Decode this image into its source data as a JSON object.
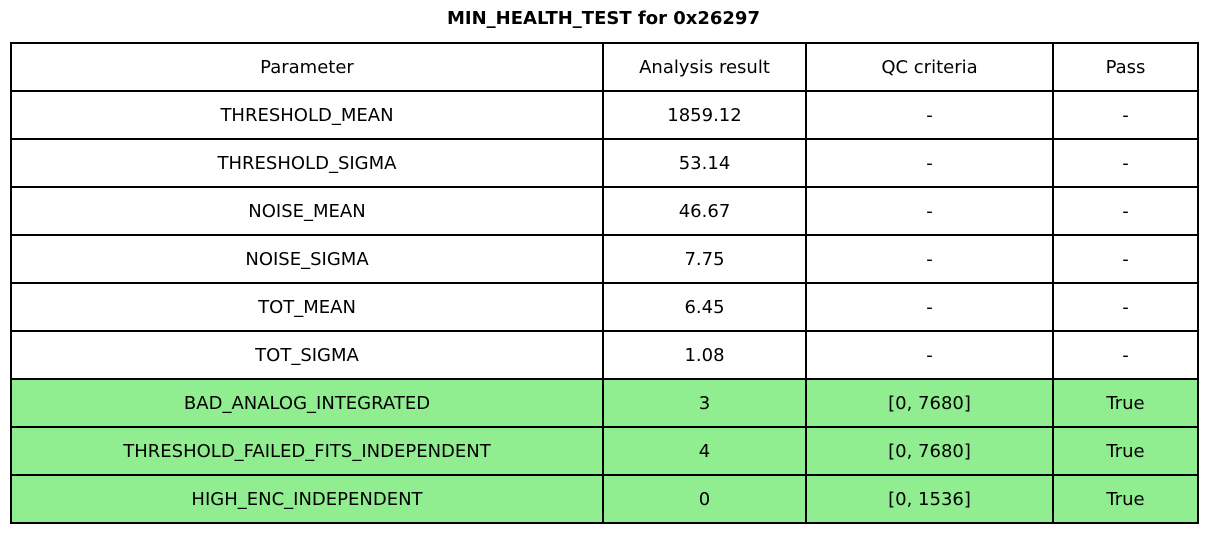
{
  "chart_data": {
    "type": "table",
    "title": "MIN_HEALTH_TEST for 0x26297",
    "columns": [
      "Parameter",
      "Analysis result",
      "QC criteria",
      "Pass"
    ],
    "rows": [
      {
        "cells": [
          "THRESHOLD_MEAN",
          "1859.12",
          "-",
          "-"
        ],
        "highlight": false
      },
      {
        "cells": [
          "THRESHOLD_SIGMA",
          "53.14",
          "-",
          "-"
        ],
        "highlight": false
      },
      {
        "cells": [
          "NOISE_MEAN",
          "46.67",
          "-",
          "-"
        ],
        "highlight": false
      },
      {
        "cells": [
          "NOISE_SIGMA",
          "7.75",
          "-",
          "-"
        ],
        "highlight": false
      },
      {
        "cells": [
          "TOT_MEAN",
          "6.45",
          "-",
          "-"
        ],
        "highlight": false
      },
      {
        "cells": [
          "TOT_SIGMA",
          "1.08",
          "-",
          "-"
        ],
        "highlight": false
      },
      {
        "cells": [
          "BAD_ANALOG_INTEGRATED",
          "3",
          "[0, 7680]",
          "True"
        ],
        "highlight": true
      },
      {
        "cells": [
          "THRESHOLD_FAILED_FITS_INDEPENDENT",
          "4",
          "[0, 7680]",
          "True"
        ],
        "highlight": true
      },
      {
        "cells": [
          "HIGH_ENC_INDEPENDENT",
          "0",
          "[0, 1536]",
          "True"
        ],
        "highlight": true
      }
    ],
    "colors": {
      "highlight_green": "#90EE90",
      "border": "#000000",
      "text": "#000000",
      "background": "#ffffff"
    },
    "layout": {
      "grid": true,
      "legend": "none"
    }
  }
}
